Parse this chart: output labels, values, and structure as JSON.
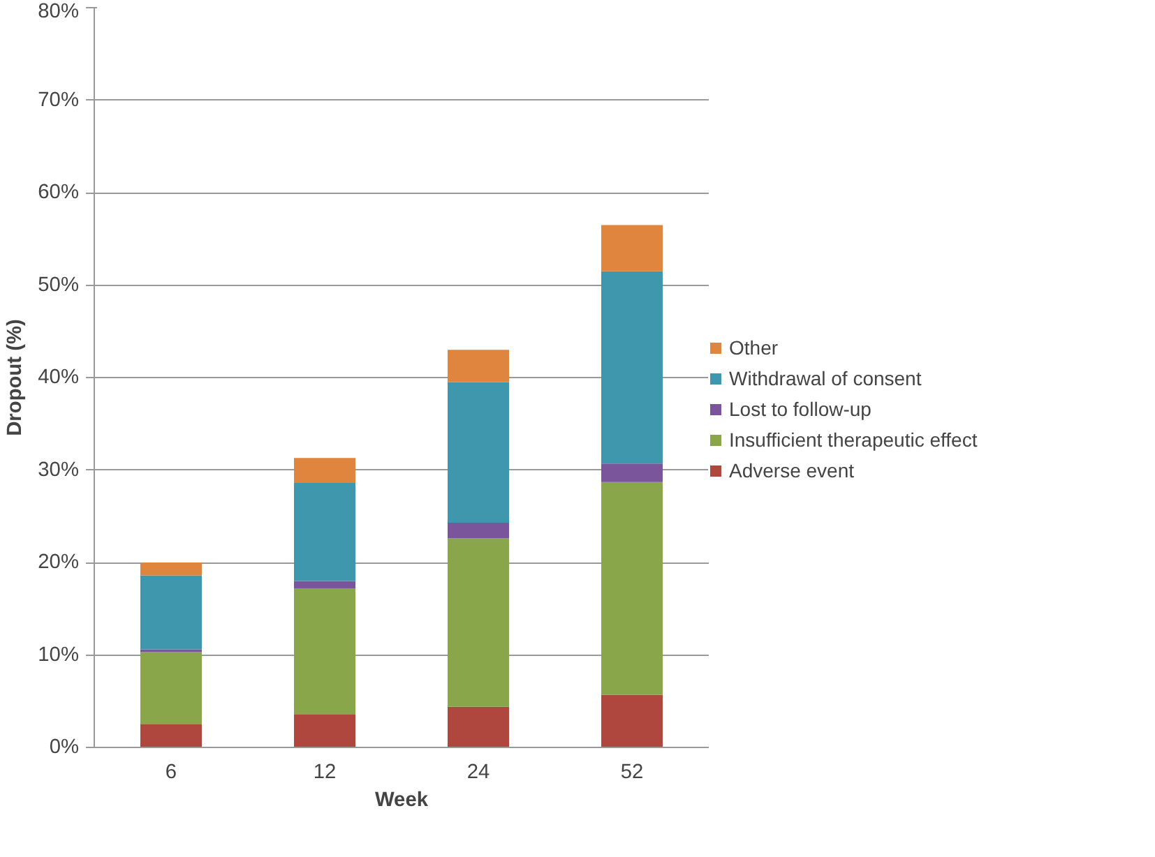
{
  "chart_data": {
    "type": "bar",
    "stacked": true,
    "xlabel": "Week",
    "ylabel": "Dropout (%)",
    "categories": [
      "6",
      "12",
      "24",
      "52"
    ],
    "series": [
      {
        "name": "Adverse event",
        "color": "#b0473f",
        "values": [
          2.5,
          3.6,
          4.4,
          5.7
        ]
      },
      {
        "name": "Insufficient therapeutic effect",
        "color": "#8aa64a",
        "values": [
          7.8,
          13.6,
          18.2,
          23.0
        ]
      },
      {
        "name": "Lost to follow-up",
        "color": "#7a559c",
        "values": [
          0.3,
          0.8,
          1.7,
          2.0
        ]
      },
      {
        "name": "Withdrawal of consent",
        "color": "#3f97ae",
        "values": [
          8.0,
          10.6,
          15.2,
          20.8
        ]
      },
      {
        "name": "Other",
        "color": "#e0853d",
        "values": [
          1.4,
          2.7,
          3.5,
          5.0
        ]
      }
    ],
    "ylim": [
      0,
      80
    ],
    "yticks": [
      {
        "value": 0,
        "label": "0%"
      },
      {
        "value": 10,
        "label": "10%"
      },
      {
        "value": 20,
        "label": "20%"
      },
      {
        "value": 30,
        "label": "30%"
      },
      {
        "value": 40,
        "label": "40%"
      },
      {
        "value": 50,
        "label": "50%"
      },
      {
        "value": 60,
        "label": "60%"
      },
      {
        "value": 70,
        "label": "70%"
      },
      {
        "value": 80,
        "label": "80%"
      }
    ],
    "grid": "y",
    "legend": "right"
  }
}
